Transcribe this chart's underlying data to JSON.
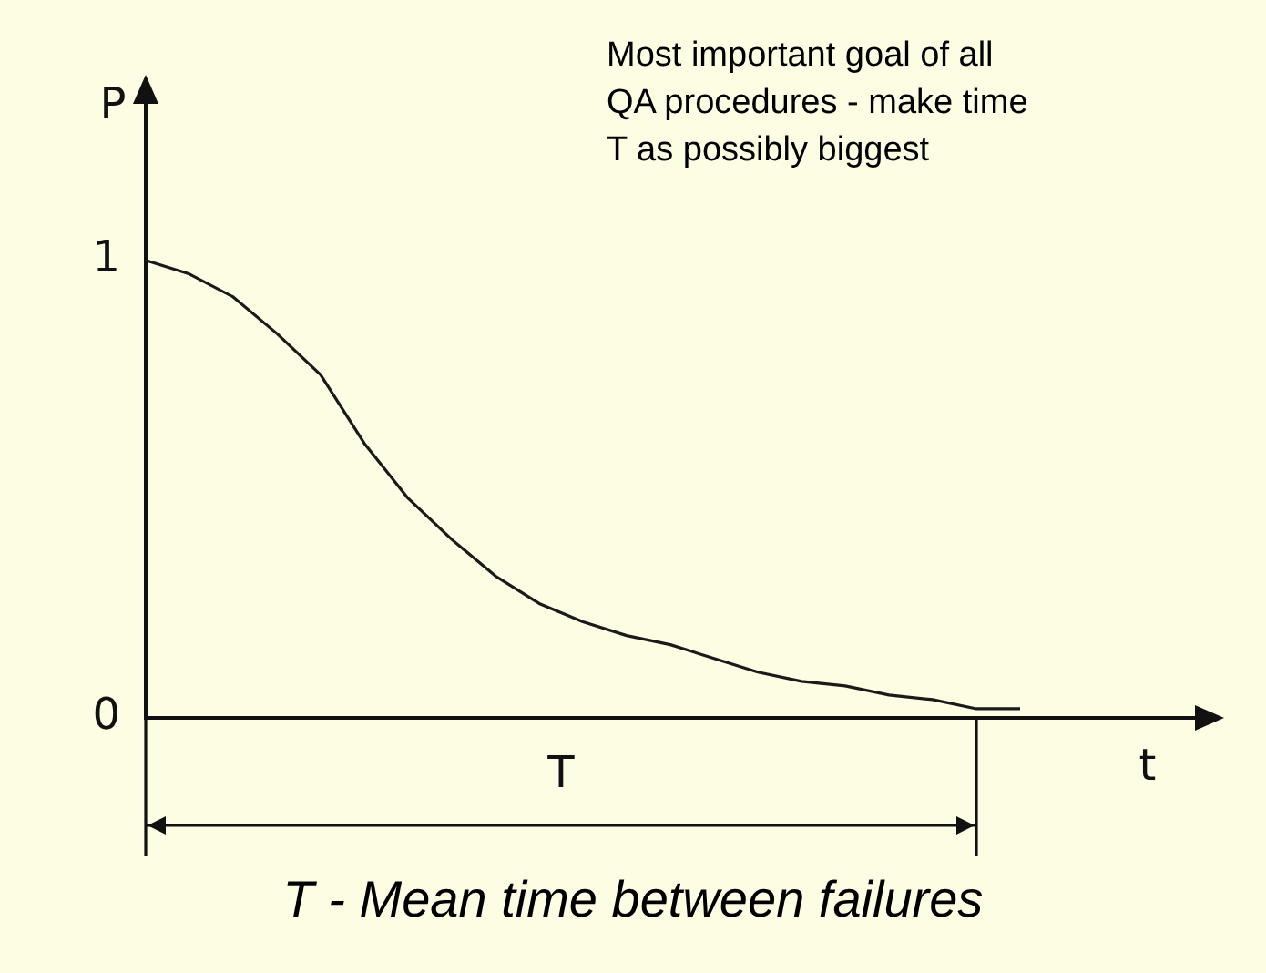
{
  "chart_data": {
    "type": "line",
    "xlabel": "t",
    "ylabel": "P",
    "annotations": [
      "Most important goal of all QA procedures - make time T as possibly biggest",
      "T",
      "T - Mean time between failures"
    ],
    "categories": [
      null,
      null,
      null,
      null,
      null,
      null,
      null,
      null,
      null,
      null,
      null,
      null,
      null,
      null,
      null,
      null,
      null,
      null,
      null,
      null,
      null,
      null,
      null,
      null,
      null
    ],
    "series": [
      {
        "color": "#1a1a1a",
        "values": [
          1.0,
          0.97,
          0.92,
          0.84,
          0.75,
          0.6,
          0.48,
          0.39,
          0.31,
          0.25,
          0.21,
          0.18,
          0.16,
          0.13,
          0.1,
          0.08,
          0.07,
          0.05,
          0.04,
          0.02,
          0.02,
          null,
          null,
          null,
          null
        ]
      }
    ],
    "ylim": [
      0,
      1.35
    ],
    "yticks": [
      0,
      1
    ],
    "grid": false,
    "legend": false,
    "marker": "none",
    "line_style": "solid"
  }
}
